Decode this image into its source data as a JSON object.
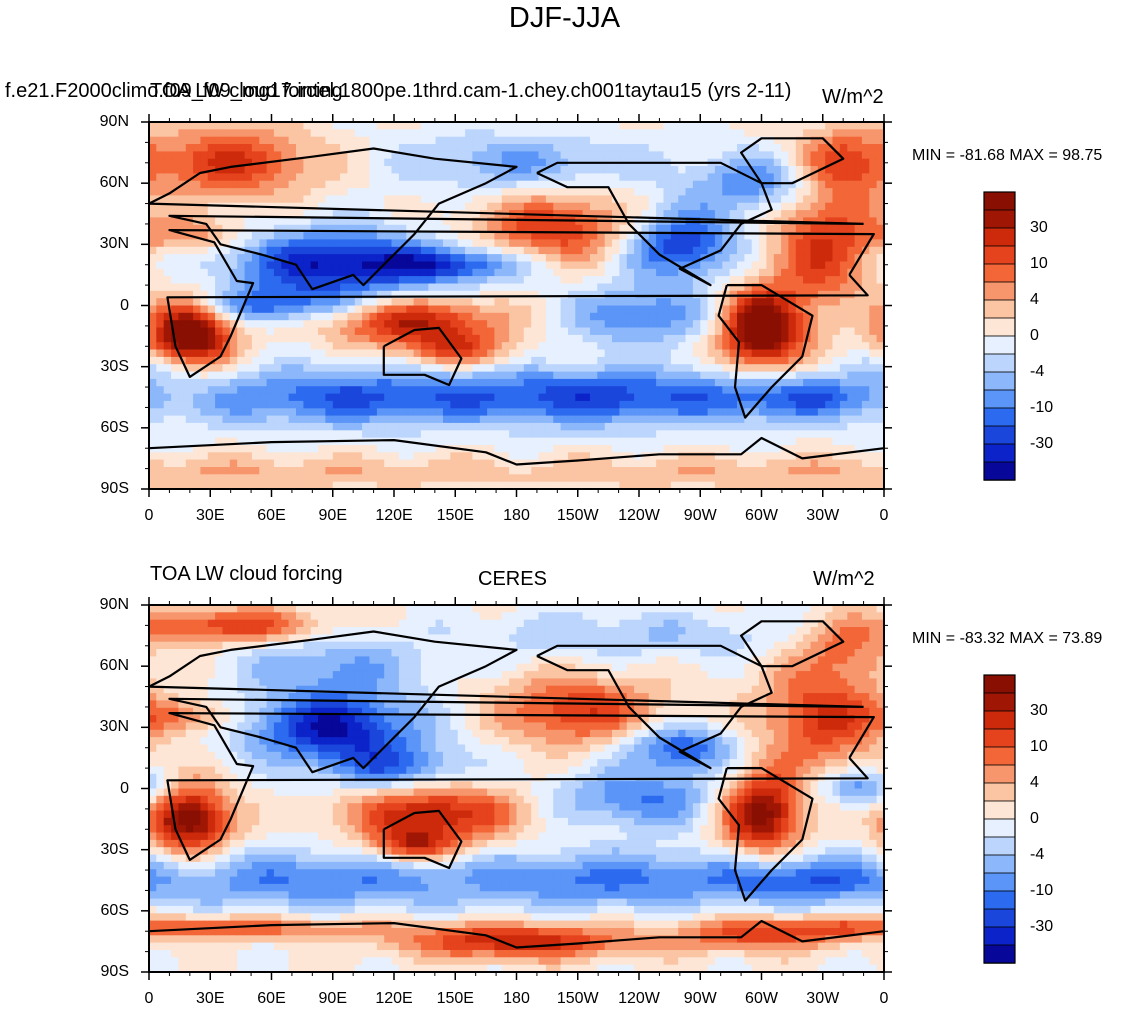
{
  "figure_title": "DJF-JJA",
  "colors": [
    "#07079a",
    "#0b23c8",
    "#1a46dc",
    "#2c6bf0",
    "#5b95f7",
    "#8cb8fb",
    "#bbd5fd",
    "#e6f0fe",
    "#fde6d6",
    "#fbc5a4",
    "#f7966c",
    "#f26637",
    "#e5431d",
    "#cc2a0b",
    "#a01605",
    "#8a0f03"
  ],
  "colorbar_labels": [
    "30",
    "10",
    "4",
    "0",
    "-4",
    "-10",
    "-30"
  ],
  "lat_ticks": [
    "90N",
    "60N",
    "30N",
    "0",
    "30S",
    "60S",
    "90S"
  ],
  "lon_ticks": [
    "0",
    "30E",
    "60E",
    "90E",
    "120E",
    "150E",
    "180",
    "150W",
    "120W",
    "90W",
    "60W",
    "30W",
    "0"
  ],
  "panels": [
    {
      "id": "model",
      "left_title": "TOA LW cloud forcing",
      "center_title": "f.e21.F2000climo.f09_f09_mg17.intel.1800pe.1thrd.cam-1.chey.ch001taytau15 (yrs 2-11)",
      "right_title": "W/m^2",
      "stats": "MIN = -81.68 MAX =  98.75"
    },
    {
      "id": "obs",
      "left_title": "TOA LW cloud forcing",
      "center_title": "CERES",
      "right_title": "W/m^2",
      "stats": "MIN = -83.32 MAX =  73.89"
    }
  ]
}
